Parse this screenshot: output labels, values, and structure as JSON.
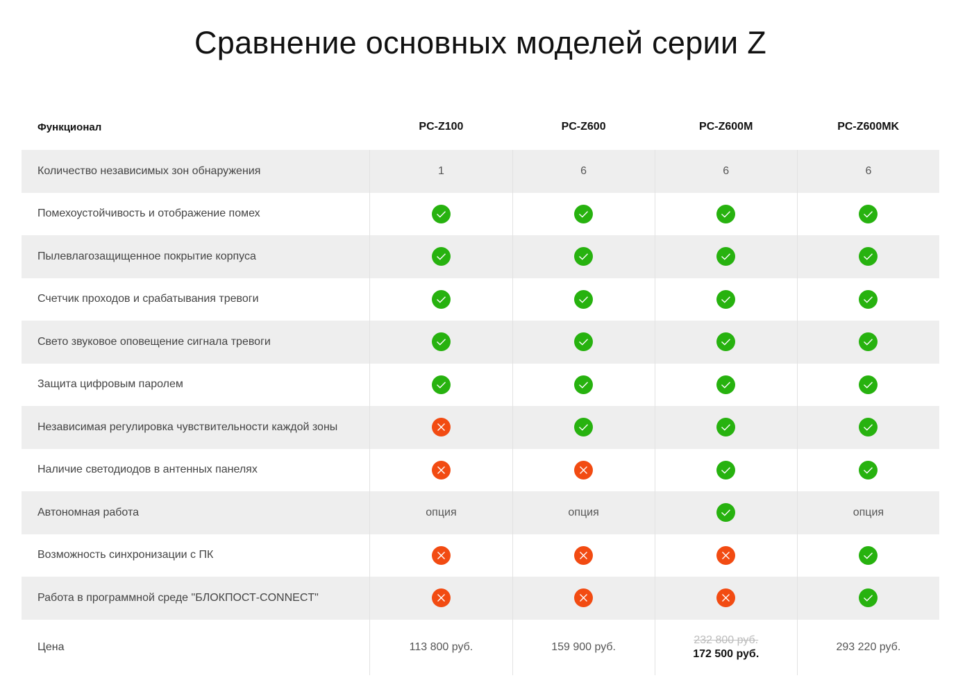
{
  "title": "Сравнение основных моделей серии Z",
  "header": {
    "feature": "Функционал",
    "models": [
      "PC-Z100",
      "PC-Z600",
      "PC-Z600M",
      "PC-Z600MK"
    ]
  },
  "colors": {
    "yes": "#27b20f",
    "no": "#f24b12",
    "shade": "#eeeeee"
  },
  "rows": [
    {
      "label": "Количество независимых зон обнаружения",
      "cells": [
        "1",
        "6",
        "6",
        "6"
      ]
    },
    {
      "label": "Помехоустойчивость и отображение помех",
      "cells": [
        "yes",
        "yes",
        "yes",
        "yes"
      ]
    },
    {
      "label": "Пылевлагозащищенное покрытие корпуса",
      "cells": [
        "yes",
        "yes",
        "yes",
        "yes"
      ]
    },
    {
      "label": "Счетчик проходов и срабатывания тревоги",
      "cells": [
        "yes",
        "yes",
        "yes",
        "yes"
      ]
    },
    {
      "label": "Свето звуковое оповещение сигнала тревоги",
      "cells": [
        "yes",
        "yes",
        "yes",
        "yes"
      ]
    },
    {
      "label": "Защита цифровым паролем",
      "cells": [
        "yes",
        "yes",
        "yes",
        "yes"
      ]
    },
    {
      "label": "Независимая регулировка чувствительности каждой зоны",
      "cells": [
        "no",
        "yes",
        "yes",
        "yes"
      ]
    },
    {
      "label": "Наличие светодиодов в антенных панелях",
      "cells": [
        "no",
        "no",
        "yes",
        "yes"
      ]
    },
    {
      "label": "Автономная работа",
      "cells": [
        "опция",
        "опция",
        "yes",
        "опция"
      ]
    },
    {
      "label": "Возможность синхронизации с ПК",
      "cells": [
        "no",
        "no",
        "no",
        "yes"
      ]
    },
    {
      "label": "Работа в программной среде \"БЛОКПОСТ-CONNECT\"",
      "cells": [
        "no",
        "no",
        "no",
        "yes"
      ]
    }
  ],
  "price": {
    "label": "Цена",
    "cells": [
      {
        "price": "113 800 руб."
      },
      {
        "price": "159 900 руб."
      },
      {
        "old_price": "232 800 руб.",
        "price": "172 500 руб."
      },
      {
        "price": "293 220 руб."
      }
    ]
  }
}
